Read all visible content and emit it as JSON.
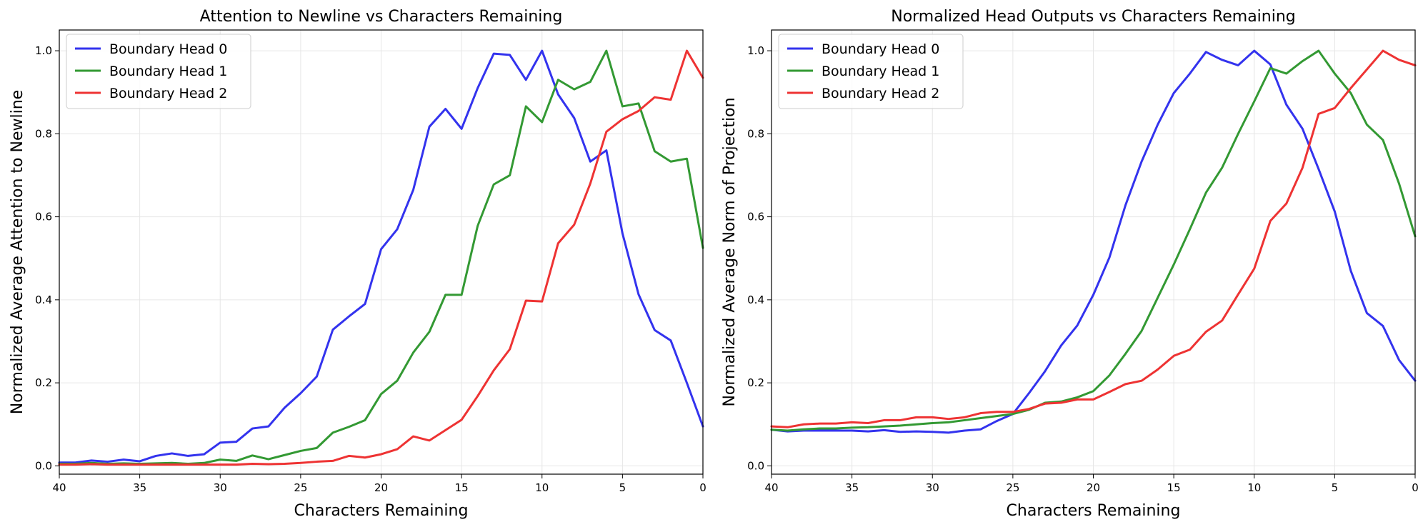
{
  "chart_data": [
    {
      "type": "line",
      "title": "Attention to Newline vs Characters Remaining",
      "xlabel": "Characters Remaining",
      "ylabel": "Normalized Average Attention to Newline",
      "xlim": [
        40,
        0
      ],
      "ylim": [
        -0.02,
        1.05
      ],
      "xticks": [
        40,
        35,
        30,
        25,
        20,
        15,
        10,
        5,
        0
      ],
      "xtick_labels": [
        "40",
        "35",
        "30",
        "25",
        "20",
        "15",
        "10",
        "5",
        "0"
      ],
      "yticks": [
        0,
        0.2,
        0.4,
        0.6,
        0.8,
        1.0
      ],
      "ytick_labels": [
        "0.0",
        "0.2",
        "0.4",
        "0.6",
        "0.8",
        "1.0"
      ],
      "grid": true,
      "legend_position": "top-left",
      "x": [
        40,
        39,
        38,
        37,
        36,
        35,
        34,
        33,
        32,
        31,
        30,
        29,
        28,
        27,
        26,
        25,
        24,
        23,
        22,
        21,
        20,
        19,
        18,
        17,
        16,
        15,
        14,
        13,
        12,
        11,
        10,
        9,
        8,
        7,
        6,
        5,
        4,
        3,
        2,
        1,
        0
      ],
      "series": [
        {
          "name": "Boundary Head 0",
          "color": "#3333ee",
          "values": [
            0.008,
            0.008,
            0.013,
            0.01,
            0.015,
            0.011,
            0.024,
            0.03,
            0.024,
            0.028,
            0.056,
            0.058,
            0.09,
            0.095,
            0.14,
            0.175,
            0.215,
            0.328,
            0.36,
            0.39,
            0.522,
            0.57,
            0.665,
            0.817,
            0.86,
            0.812,
            0.91,
            0.993,
            0.99,
            0.93,
            1.0,
            0.895,
            0.838,
            0.733,
            0.76,
            0.56,
            0.413,
            0.327,
            0.302,
            0.2,
            0.095
          ]
        },
        {
          "name": "Boundary Head 1",
          "color": "#339933",
          "values": [
            0.005,
            0.005,
            0.007,
            0.005,
            0.006,
            0.005,
            0.006,
            0.007,
            0.005,
            0.007,
            0.015,
            0.012,
            0.025,
            0.016,
            0.026,
            0.036,
            0.043,
            0.08,
            0.094,
            0.11,
            0.173,
            0.205,
            0.273,
            0.323,
            0.412,
            0.412,
            0.578,
            0.678,
            0.7,
            0.866,
            0.828,
            0.93,
            0.907,
            0.925,
            1.0,
            0.866,
            0.873,
            0.758,
            0.733,
            0.74,
            0.525
          ]
        },
        {
          "name": "Boundary Head 2",
          "color": "#ee3333",
          "values": [
            0.003,
            0.003,
            0.004,
            0.003,
            0.003,
            0.003,
            0.003,
            0.003,
            0.003,
            0.003,
            0.003,
            0.003,
            0.005,
            0.004,
            0.005,
            0.007,
            0.01,
            0.012,
            0.024,
            0.02,
            0.028,
            0.04,
            0.071,
            0.061,
            0.086,
            0.111,
            0.168,
            0.23,
            0.281,
            0.398,
            0.396,
            0.536,
            0.581,
            0.68,
            0.805,
            0.835,
            0.855,
            0.888,
            0.882,
            1.0,
            0.935
          ]
        }
      ]
    },
    {
      "type": "line",
      "title": "Normalized Head Outputs vs Characters Remaining",
      "xlabel": "Characters Remaining",
      "ylabel": "Normalized Average Norm of Projection",
      "xlim": [
        40,
        0
      ],
      "ylim": [
        -0.02,
        1.05
      ],
      "xticks": [
        40,
        35,
        30,
        25,
        20,
        15,
        10,
        5,
        0
      ],
      "xtick_labels": [
        "40",
        "35",
        "30",
        "25",
        "20",
        "15",
        "10",
        "5",
        "0"
      ],
      "yticks": [
        0,
        0.2,
        0.4,
        0.6,
        0.8,
        1.0
      ],
      "ytick_labels": [
        "0.0",
        "0.2",
        "0.4",
        "0.6",
        "0.8",
        "1.0"
      ],
      "grid": true,
      "legend_position": "top-left",
      "x": [
        40,
        39,
        38,
        37,
        36,
        35,
        34,
        33,
        32,
        31,
        30,
        29,
        28,
        27,
        26,
        25,
        24,
        23,
        22,
        21,
        20,
        19,
        18,
        17,
        16,
        15,
        14,
        13,
        12,
        11,
        10,
        9,
        8,
        7,
        6,
        5,
        4,
        3,
        2,
        1,
        0
      ],
      "series": [
        {
          "name": "Boundary Head 0",
          "color": "#3333ee",
          "values": [
            0.087,
            0.083,
            0.085,
            0.085,
            0.085,
            0.085,
            0.083,
            0.086,
            0.082,
            0.083,
            0.082,
            0.08,
            0.085,
            0.088,
            0.108,
            0.125,
            0.175,
            0.228,
            0.29,
            0.338,
            0.412,
            0.502,
            0.628,
            0.733,
            0.822,
            0.898,
            0.945,
            0.997,
            0.978,
            0.965,
            1.0,
            0.967,
            0.87,
            0.812,
            0.715,
            0.613,
            0.47,
            0.368,
            0.337,
            0.255,
            0.205
          ]
        },
        {
          "name": "Boundary Head 1",
          "color": "#339933",
          "values": [
            0.087,
            0.085,
            0.088,
            0.09,
            0.09,
            0.092,
            0.093,
            0.095,
            0.097,
            0.1,
            0.103,
            0.105,
            0.11,
            0.115,
            0.12,
            0.125,
            0.135,
            0.152,
            0.155,
            0.165,
            0.18,
            0.218,
            0.27,
            0.325,
            0.405,
            0.485,
            0.57,
            0.658,
            0.718,
            0.8,
            0.878,
            0.958,
            0.945,
            0.975,
            1.0,
            0.945,
            0.898,
            0.822,
            0.785,
            0.68,
            0.553
          ]
        },
        {
          "name": "Boundary Head 2",
          "color": "#ee3333",
          "values": [
            0.095,
            0.093,
            0.1,
            0.102,
            0.102,
            0.105,
            0.103,
            0.11,
            0.11,
            0.117,
            0.117,
            0.113,
            0.117,
            0.127,
            0.13,
            0.13,
            0.137,
            0.15,
            0.152,
            0.16,
            0.16,
            0.178,
            0.197,
            0.205,
            0.232,
            0.265,
            0.28,
            0.323,
            0.35,
            0.413,
            0.475,
            0.59,
            0.632,
            0.718,
            0.848,
            0.862,
            0.91,
            0.955,
            1.0,
            0.978,
            0.965
          ]
        }
      ]
    }
  ]
}
